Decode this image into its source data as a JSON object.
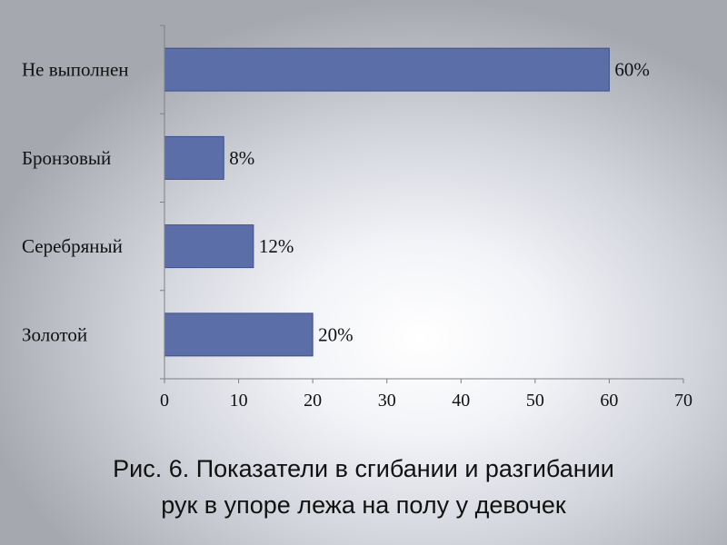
{
  "chart_data": {
    "type": "bar",
    "orientation": "horizontal",
    "categories": [
      "Не выполнен",
      "Бронзовый",
      "Серебряный",
      "Золотой"
    ],
    "values": [
      60,
      8,
      12,
      20
    ],
    "data_labels": [
      "60%",
      "8%",
      "12%",
      "20%"
    ],
    "xlim": [
      0,
      70
    ],
    "xticks": [
      0,
      10,
      20,
      30,
      40,
      50,
      60,
      70
    ],
    "grid": false,
    "legend": "none",
    "bar_color": "#5b6ea8",
    "bar_edge_color": "#3d4f87"
  },
  "caption": {
    "line1": "Рис. 6. Показатели в  сгибании и разгибании",
    "line2": "рук в упоре лежа на полу  у девочек"
  }
}
